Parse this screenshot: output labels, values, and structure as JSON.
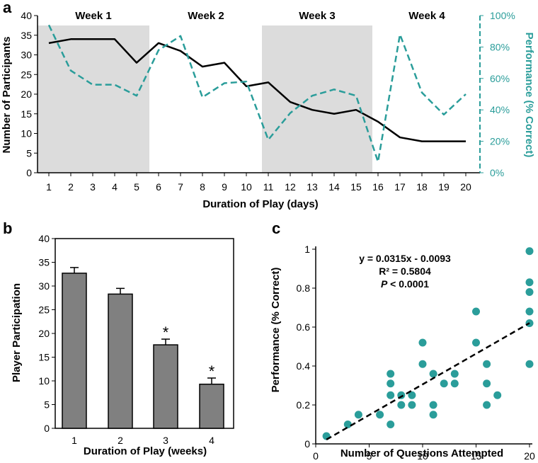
{
  "chart_data": [
    {
      "panel": "a",
      "type": "line",
      "xlabel": "Duration of Play (days)",
      "ylabel": "Number of Participants",
      "y2label": "Performance (% Correct)",
      "x": [
        1,
        2,
        3,
        4,
        5,
        6,
        7,
        8,
        9,
        10,
        11,
        12,
        13,
        14,
        15,
        16,
        17,
        18,
        19,
        20
      ],
      "ylim": [
        0,
        40
      ],
      "yticks": [
        "0",
        "5",
        "10",
        "15",
        "20",
        "25",
        "30",
        "35",
        "40"
      ],
      "y2lim": [
        0,
        100
      ],
      "y2ticks": [
        "0%",
        "20%",
        "40%",
        "60%",
        "80%",
        "100%"
      ],
      "weeks": [
        "Week 1",
        "Week 2",
        "Week 3",
        "Week 4"
      ],
      "series": [
        {
          "name": "Number of Participants",
          "axis": "left",
          "style": "solid",
          "color": "#000000",
          "values": [
            33,
            34,
            34,
            34,
            28,
            33,
            31,
            27,
            28,
            22,
            23,
            18,
            16,
            15,
            16,
            13,
            9,
            8,
            8,
            8
          ]
        },
        {
          "name": "Performance (% Correct)",
          "axis": "right",
          "style": "dashed",
          "color": "#2a9d9a",
          "values": [
            94,
            65,
            56,
            56,
            49,
            78,
            87,
            48,
            57,
            58,
            21,
            38,
            49,
            53,
            49,
            7,
            88,
            51,
            37,
            50
          ]
        }
      ]
    },
    {
      "panel": "b",
      "type": "bar",
      "categories": [
        "1",
        "2",
        "3",
        "4"
      ],
      "values": [
        32.7,
        28.3,
        17.6,
        9.3
      ],
      "errors": [
        1.2,
        1.2,
        1.2,
        1.3
      ],
      "significant": [
        "",
        "",
        "*",
        "*"
      ],
      "xlabel": "Duration of Play (weeks)",
      "ylabel": "Player Participation",
      "ylim": [
        0,
        40
      ],
      "yticks": [
        "0",
        "5",
        "10",
        "15",
        "20",
        "25",
        "30",
        "35",
        "40"
      ],
      "bar_color": "#808080"
    },
    {
      "panel": "c",
      "type": "scatter",
      "xlabel": "Number of Questions Attempted",
      "ylabel": "Performance (% Correct)",
      "xlim": [
        0,
        20
      ],
      "xticks": [
        "0",
        "5",
        "10",
        "15",
        "20"
      ],
      "ylim": [
        0,
        1
      ],
      "yticks": [
        "0",
        "0.2",
        "0.4",
        "0.6",
        "0.8",
        "1"
      ],
      "points": [
        [
          1,
          0.04
        ],
        [
          3,
          0.1
        ],
        [
          4,
          0.15
        ],
        [
          6,
          0.15
        ],
        [
          7,
          0.1
        ],
        [
          7,
          0.25
        ],
        [
          7,
          0.31
        ],
        [
          7,
          0.36
        ],
        [
          8,
          0.2
        ],
        [
          8,
          0.25
        ],
        [
          9,
          0.2
        ],
        [
          9,
          0.25
        ],
        [
          10,
          0.41
        ],
        [
          10,
          0.52
        ],
        [
          11,
          0.15
        ],
        [
          11,
          0.2
        ],
        [
          11,
          0.36
        ],
        [
          12,
          0.31
        ],
        [
          13,
          0.31
        ],
        [
          13,
          0.36
        ],
        [
          15,
          0.52
        ],
        [
          15,
          0.68
        ],
        [
          16,
          0.2
        ],
        [
          16,
          0.31
        ],
        [
          16,
          0.41
        ],
        [
          17,
          0.25
        ],
        [
          20,
          0.41
        ],
        [
          20,
          0.62
        ],
        [
          20,
          0.68
        ],
        [
          20,
          0.78
        ],
        [
          20,
          0.83
        ],
        [
          20,
          0.99
        ]
      ],
      "trendline": {
        "slope": 0.0315,
        "intercept": -0.0093
      },
      "annotations": [
        "y = 0.0315x - 0.0093",
        "R² = 0.5804",
        "P",
        " < 0.0001"
      ],
      "point_color": "#2a9d9a"
    }
  ]
}
